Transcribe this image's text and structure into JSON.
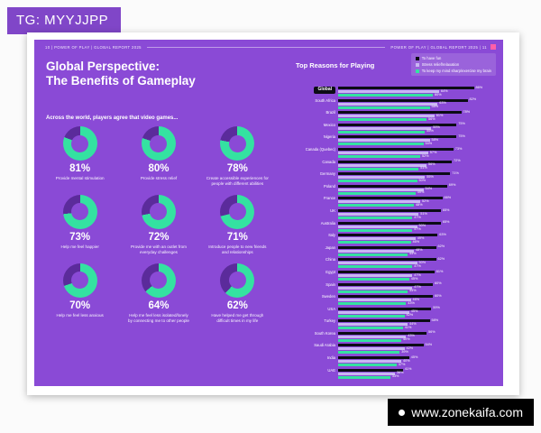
{
  "overlay": {
    "tg_label": "TG: MYYJJPP",
    "watermark": "www.zonekaifa.com"
  },
  "spread": {
    "header_left": "10  |  POWER OF PLAY  |  GLOBAL REPORT 2025",
    "header_right": "POWER OF PLAY  |  GLOBAL REPORT 2025  |  11",
    "left": {
      "title_line1": "Global Perspective:",
      "title_line2": "The Benefits of Gameplay",
      "subtitle": "Across the world, players agree that video games..."
    },
    "right": {
      "title": "Top Reasons for Playing"
    }
  },
  "colors": {
    "page_purple": "#8a4ad6",
    "donut_green": "#34e2a1",
    "donut_rest": "#5b2b9b",
    "bar_black": "#0c0c16",
    "bar_lavender": "#c9b6f3",
    "bar_green": "#34e2a1",
    "marker_pink": "#ff5fa8"
  },
  "chart_data": [
    {
      "type": "pie",
      "variant": "donut-grid",
      "title": "Across the world, players agree that video games...",
      "unit": "%",
      "items": [
        {
          "value": 81,
          "label": "Provide mental stimulation"
        },
        {
          "value": 80,
          "label": "Provide stress relief"
        },
        {
          "value": 78,
          "label": "Create accessible experiences for people with different abilities"
        },
        {
          "value": 73,
          "label": "Help me feel happier"
        },
        {
          "value": 72,
          "label": "Provide me with an outlet from everyday challenges"
        },
        {
          "value": 71,
          "label": "Introduce people to new friends and relationships"
        },
        {
          "value": 70,
          "label": "Help me feel less anxious"
        },
        {
          "value": 64,
          "label": "Help me feel less isolated/lonely by connecting me to other people"
        },
        {
          "value": 62,
          "label": "Have helped me get through difficult times in my life"
        }
      ]
    },
    {
      "type": "bar",
      "orientation": "horizontal",
      "title": "Top Reasons for Playing",
      "unit": "%",
      "xlim": [
        0,
        100
      ],
      "legend_position": "top-right",
      "categories": [
        "Global",
        "South Africa",
        "Brazil",
        "Mexico",
        "Nigeria",
        "Canada (Quebec)",
        "Canada",
        "Germany",
        "Poland",
        "France",
        "UK",
        "Australia",
        "Italy",
        "Japan",
        "China",
        "Egypt",
        "Spain",
        "Sweden",
        "USA",
        "Turkey",
        "South Korea",
        "Saudi Arabia",
        "India",
        "UAE"
      ],
      "series": [
        {
          "name": "To have fun",
          "color": "#0c0c16",
          "values": [
            86,
            82,
            78,
            75,
            75,
            73,
            72,
            71,
            69,
            66,
            65,
            65,
            63,
            62,
            62,
            61,
            60,
            60,
            59,
            58,
            56,
            54,
            45,
            41
          ]
        },
        {
          "name": "Stress relief/relaxation",
          "color": "#c9b6f3",
          "values": [
            64,
            63,
            61,
            59,
            58,
            57,
            56,
            55,
            54,
            52,
            51,
            50,
            49,
            48,
            50,
            47,
            47,
            46,
            45,
            44,
            43,
            42,
            40,
            36
          ]
        },
        {
          "name": "To keep my mind sharp/exercise my brain",
          "color": "#34e2a1",
          "values": [
            60,
            58,
            56,
            55,
            54,
            52,
            51,
            50,
            49,
            48,
            47,
            47,
            46,
            44,
            47,
            45,
            44,
            43,
            42,
            41,
            40,
            39,
            37,
            33
          ]
        }
      ]
    }
  ]
}
